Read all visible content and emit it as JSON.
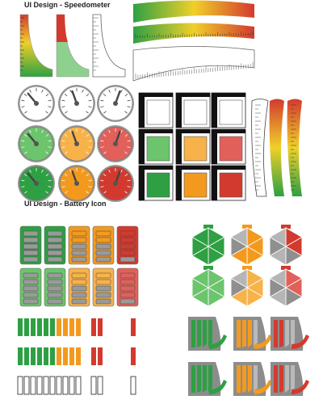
{
  "titles": {
    "speedometer": "UI Design - Speedometer",
    "battery": "UI Design - Battery Icon"
  },
  "colors": {
    "green": "#2ea043",
    "light_green": "#6cc46c",
    "orange": "#f39a1e",
    "light_orange": "#f7b24a",
    "red": "#d33a2f",
    "light_red": "#e2605a",
    "gray": "#8a8a8a",
    "light_gray": "#c9c9c9",
    "dark": "#2b2b2b",
    "yellow": "#f0d02a"
  },
  "gauges": {
    "rows": [
      [
        "white",
        "white",
        "white"
      ],
      [
        "light_green",
        "light_orange",
        "light_red"
      ],
      [
        "green",
        "orange",
        "red"
      ]
    ]
  },
  "level_tiles": {
    "rows": [
      [
        "white",
        "white",
        "white"
      ],
      [
        "light_green",
        "light_orange",
        "light_red"
      ],
      [
        "green",
        "orange",
        "red"
      ]
    ]
  },
  "battery_grid": {
    "columns": [
      "green",
      "green",
      "orange",
      "orange",
      "red"
    ],
    "top_row_fill": [
      1.0,
      1.0,
      0.6,
      0.6,
      0.2
    ],
    "bottom_row_fill": [
      1.0,
      1.0,
      0.6,
      0.6,
      0.2
    ]
  },
  "hex_batteries": {
    "columns": [
      "green",
      "orange",
      "red"
    ],
    "fill_segments": [
      6,
      4,
      2
    ]
  },
  "quarter_batteries": {
    "columns": [
      "green",
      "orange",
      "red"
    ]
  }
}
